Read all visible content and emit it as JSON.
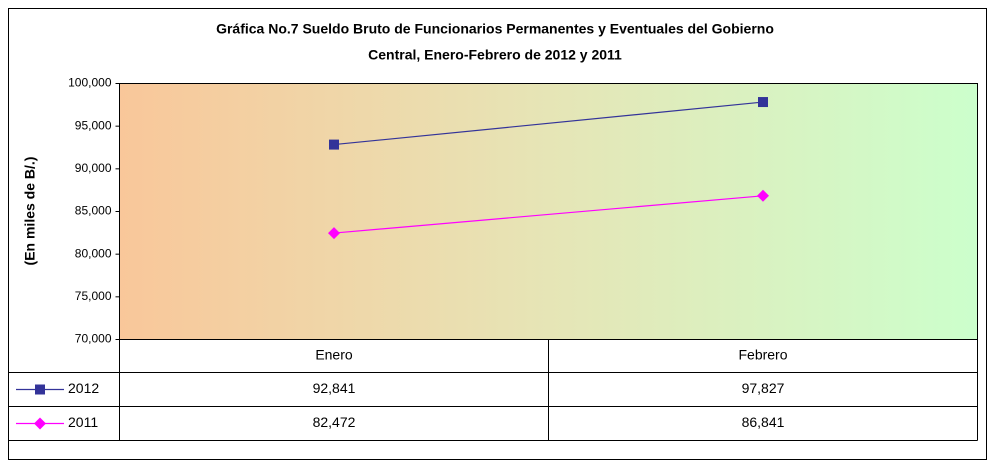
{
  "chart_data": {
    "type": "line",
    "title": [
      "Gráfica No.7 Sueldo Bruto de Funcionarios Permanentes y Eventuales del Gobierno",
      "Central, Enero-Febrero de 2012 y 2011"
    ],
    "y_label": "(En miles de B/.)",
    "categories": [
      "Enero",
      "Febrero"
    ],
    "series": [
      {
        "name": "2012",
        "color": "#333399",
        "marker": "square",
        "values": [
          92841,
          97827
        ],
        "value_labels": [
          "92,841",
          "97,827"
        ]
      },
      {
        "name": "2011",
        "color": "#ff00ff",
        "marker": "diamond",
        "values": [
          82472,
          86841
        ],
        "value_labels": [
          "82,472",
          "86,841"
        ]
      }
    ],
    "ylim": [
      70000,
      100000
    ],
    "yticks": [
      {
        "value": 70000,
        "label": "70,000"
      },
      {
        "value": 75000,
        "label": "75,000"
      },
      {
        "value": 80000,
        "label": "80,000"
      },
      {
        "value": 85000,
        "label": "85,000"
      },
      {
        "value": 90000,
        "label": "90,000"
      },
      {
        "value": 95000,
        "label": "95,000"
      },
      {
        "value": 100000,
        "label": "100,000"
      }
    ]
  }
}
